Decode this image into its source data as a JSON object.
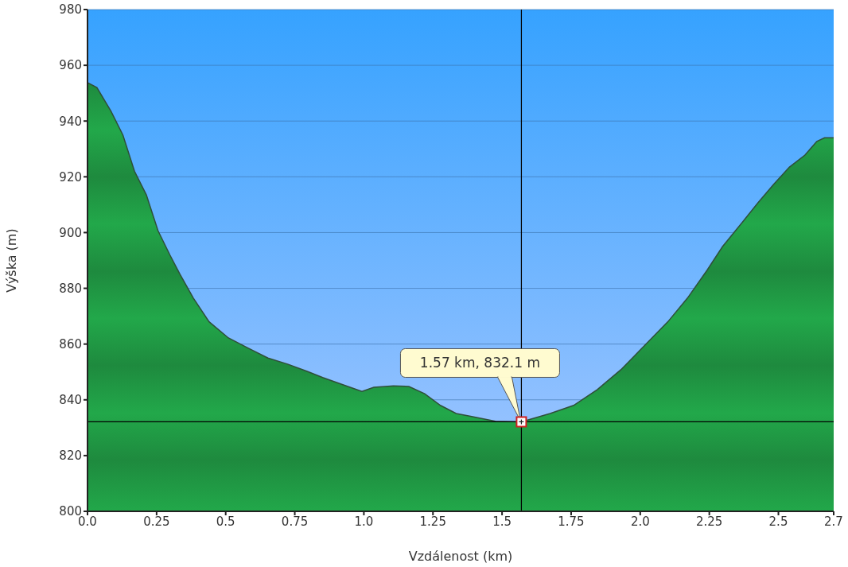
{
  "chart_data": {
    "type": "area",
    "xlabel": "Vzdálenost (km)",
    "ylabel": "Výška (m)",
    "x": [
      0,
      0.034,
      0.085,
      0.128,
      0.17,
      0.213,
      0.255,
      0.298,
      0.335,
      0.383,
      0.44,
      0.51,
      0.582,
      0.653,
      0.724,
      0.795,
      0.851,
      0.936,
      0.993,
      1.036,
      1.107,
      1.163,
      1.22,
      1.277,
      1.334,
      1.39,
      1.476,
      1.57,
      1.674,
      1.759,
      1.845,
      1.93,
      2.015,
      2.1,
      2.171,
      2.242,
      2.298,
      2.369,
      2.426,
      2.483,
      2.54,
      2.596,
      2.639,
      2.667,
      2.7
    ],
    "series": [
      {
        "color": "#22a84a",
        "values": [
          953.8,
          952,
          943.5,
          935,
          922,
          913.5,
          900.7,
          892,
          885,
          876.5,
          868,
          862.2,
          858.5,
          855,
          852.8,
          850.2,
          848,
          845,
          843,
          844.5,
          845,
          844.8,
          842.2,
          838,
          835.1,
          834,
          832.3,
          832.1,
          835.1,
          838,
          843.7,
          850.8,
          859.4,
          868,
          876.5,
          886.5,
          895,
          903.6,
          910.7,
          917.3,
          923.5,
          927.8,
          932.7,
          934,
          934
        ]
      }
    ],
    "xlim": [
      0,
      2.7
    ],
    "ylim": [
      800,
      980
    ],
    "xticks": [
      {
        "value": 0,
        "label": "0.0"
      },
      0.25,
      0.5,
      0.75,
      {
        "value": 1,
        "label": "1.0"
      },
      1.25,
      1.5,
      1.75,
      {
        "value": 2,
        "label": "2.0"
      },
      2.25,
      2.5,
      2.7
    ],
    "yticks": [
      800,
      820,
      840,
      860,
      880,
      900,
      920,
      940,
      960,
      980
    ],
    "grid": "y",
    "ref_lines": [
      {
        "axis": "x",
        "value": 1.57,
        "color": "#000000"
      },
      {
        "axis": "y",
        "value": 832.1,
        "color": "#000000"
      }
    ],
    "annotations": [
      "1.57 km, 832.1 m"
    ]
  }
}
